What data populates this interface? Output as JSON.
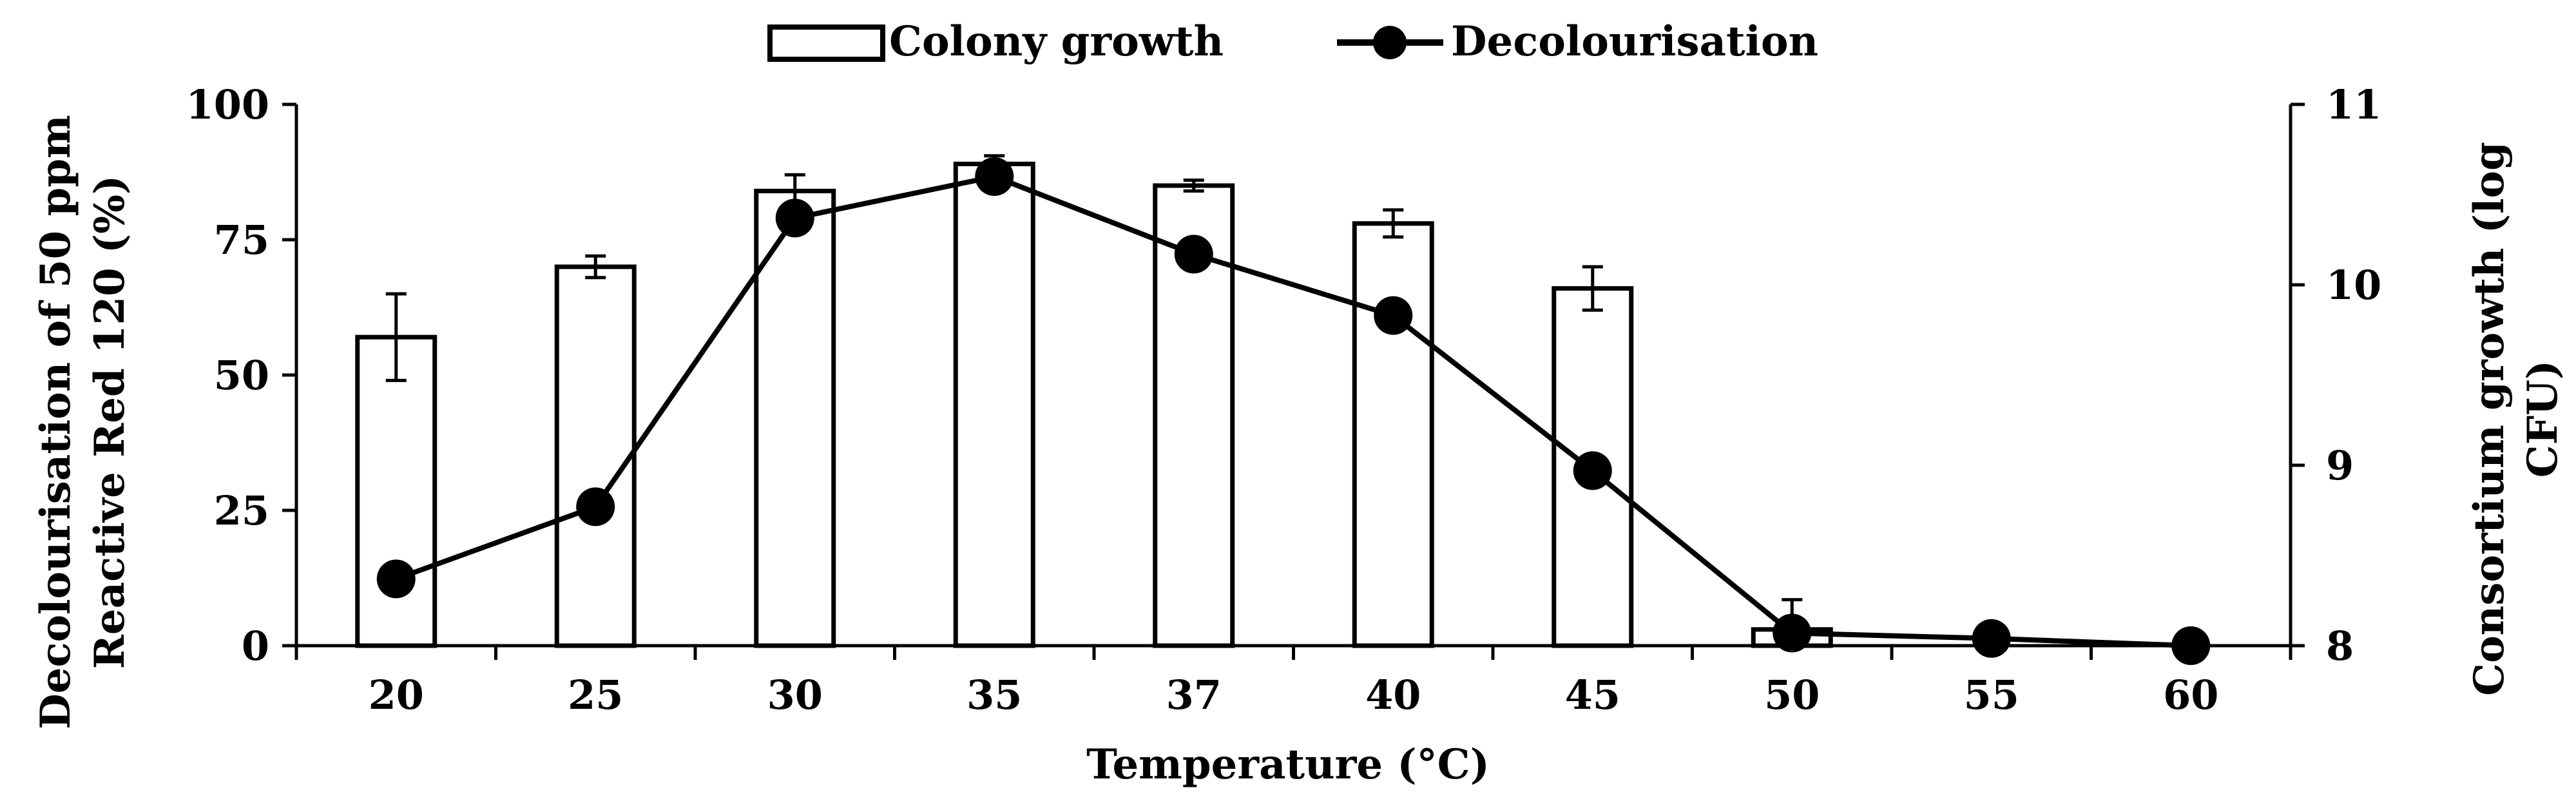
{
  "chart_data": {
    "type": "bar+line",
    "categories": [
      "20",
      "25",
      "30",
      "35",
      "37",
      "40",
      "45",
      "50",
      "55",
      "60"
    ],
    "xlabel": "Temperature (°C)",
    "ylabel_left_line1": "Decolourisation of 50 ppm",
    "ylabel_left_line2": "Reactive Red 120 (%)",
    "ylabel_right_line1": "Consortium growth (log",
    "ylabel_right_line2": "CFU)",
    "y_left": {
      "min": 0,
      "max": 100,
      "ticks": [
        0,
        25,
        50,
        75,
        100
      ]
    },
    "y_right": {
      "min": 8,
      "max": 11,
      "ticks": [
        8,
        9,
        10,
        11
      ]
    },
    "legend": [
      {
        "label": "Colony growth",
        "kind": "bar"
      },
      {
        "label": "Decolourisation",
        "kind": "line"
      }
    ],
    "bars": {
      "name": "Colony growth",
      "axis": "left",
      "values": [
        57,
        70,
        84,
        89,
        85,
        78,
        66,
        3,
        null,
        null
      ],
      "errors": [
        8,
        2,
        3,
        1.5,
        1,
        2.5,
        4,
        5.5,
        null,
        null
      ]
    },
    "line": {
      "name": "Decolourisation",
      "axis": "right",
      "values": [
        8.37,
        8.77,
        10.37,
        10.6,
        10.17,
        9.83,
        8.97,
        8.07,
        8.04,
        8.0
      ]
    }
  }
}
